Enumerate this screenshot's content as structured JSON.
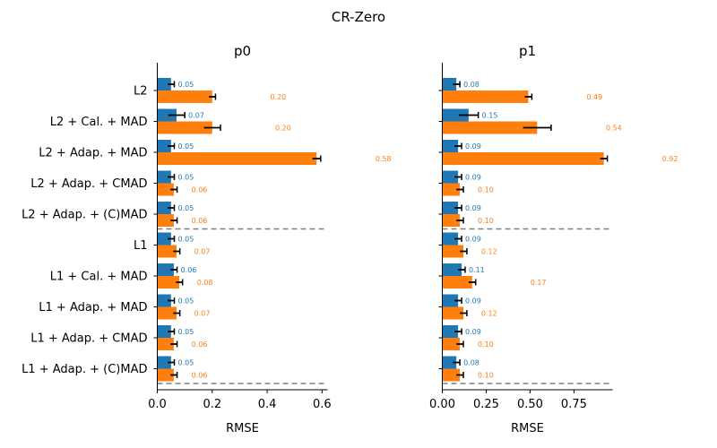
{
  "suptitle": "CR-Zero",
  "colors": {
    "series_a": "#1f77b4",
    "series_b": "#ff7f0e",
    "separator": "#808080"
  },
  "chart_data": [
    {
      "type": "bar",
      "orientation": "horizontal",
      "title": "p0",
      "xlabel": "RMSE",
      "xlim": [
        0,
        0.62
      ],
      "xticks": [
        "0.0",
        "0.2",
        "0.4",
        "0.6"
      ],
      "categories": [
        "L2",
        "L2 + Cal. + MAD",
        "L2 + Adap. + MAD",
        "L2 + Adap. + CMAD",
        "L2 + Adap. + (C)MAD",
        "L1",
        "L1 + Cal. + MAD",
        "L1 + Adap. + MAD",
        "L1 + Adap. + CMAD",
        "L1 + Adap. + (C)MAD"
      ],
      "separators_after": [
        "L2 + Adap. + (C)MAD",
        "L1 + Adap. + (C)MAD"
      ],
      "series": [
        {
          "values": [
            0.05,
            0.07,
            0.05,
            0.05,
            0.05,
            0.05,
            0.06,
            0.05,
            0.05,
            0.05
          ],
          "errors": [
            0.012,
            0.03,
            0.012,
            0.012,
            0.012,
            0.012,
            0.012,
            0.012,
            0.012,
            0.012
          ],
          "labels": [
            "0.05",
            "0.07",
            "0.05",
            "0.05",
            "0.05",
            "0.05",
            "0.06",
            "0.05",
            "0.05",
            "0.05"
          ]
        },
        {
          "values": [
            0.2,
            0.2,
            0.58,
            0.06,
            0.06,
            0.07,
            0.08,
            0.07,
            0.06,
            0.06
          ],
          "errors": [
            0.012,
            0.03,
            0.015,
            0.012,
            0.012,
            0.012,
            0.012,
            0.012,
            0.012,
            0.012
          ],
          "labels": [
            "0.20",
            "0.20",
            "0.58",
            "0.06",
            "0.06",
            "0.07",
            "0.08",
            "0.07",
            "0.06",
            "0.06"
          ]
        }
      ]
    },
    {
      "type": "bar",
      "orientation": "horizontal",
      "title": "p1",
      "xlabel": "RMSE",
      "xlim": [
        0,
        0.97
      ],
      "xticks": [
        "0.00",
        "0.25",
        "0.50",
        "0.75"
      ],
      "categories": [
        "L2",
        "L2 + Cal. + MAD",
        "L2 + Adap. + MAD",
        "L2 + Adap. + CMAD",
        "L2 + Adap. + (C)MAD",
        "L1",
        "L1 + Cal. + MAD",
        "L1 + Adap. + MAD",
        "L1 + Adap. + CMAD",
        "L1 + Adap. + (C)MAD"
      ],
      "separators_after": [
        "L2 + Adap. + (C)MAD",
        "L1 + Adap. + (C)MAD"
      ],
      "series": [
        {
          "values": [
            0.08,
            0.15,
            0.09,
            0.09,
            0.09,
            0.09,
            0.11,
            0.09,
            0.09,
            0.08
          ],
          "errors": [
            0.02,
            0.055,
            0.02,
            0.02,
            0.02,
            0.02,
            0.02,
            0.02,
            0.02,
            0.02
          ],
          "labels": [
            "0.08",
            "0.15",
            "0.09",
            "0.09",
            "0.09",
            "0.09",
            "0.11",
            "0.09",
            "0.09",
            "0.08"
          ]
        },
        {
          "values": [
            0.49,
            0.54,
            0.92,
            0.1,
            0.1,
            0.12,
            0.17,
            0.12,
            0.1,
            0.1
          ],
          "errors": [
            0.02,
            0.08,
            0.02,
            0.02,
            0.02,
            0.02,
            0.02,
            0.02,
            0.02,
            0.02
          ],
          "labels": [
            "0.49",
            "0.54",
            "0.92",
            "0.10",
            "0.10",
            "0.12",
            "0.17",
            "0.12",
            "0.10",
            "0.10"
          ]
        }
      ]
    }
  ]
}
